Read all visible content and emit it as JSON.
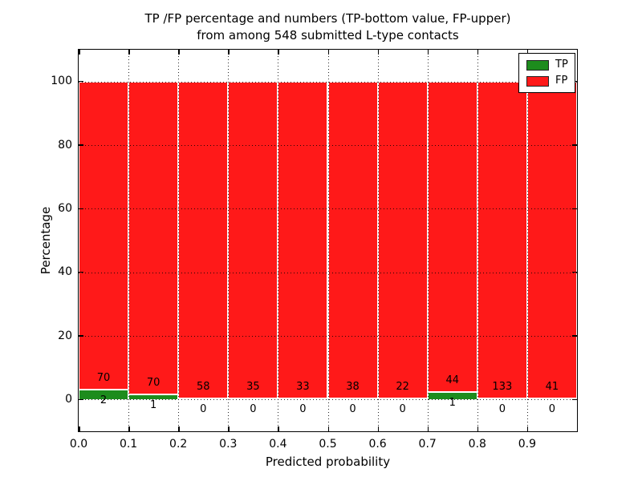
{
  "chart_data": {
    "type": "bar",
    "stacked": true,
    "representation": "each 0.1-wide bin stacked to 100% (TP bottom, FP top); printed numbers are raw counts",
    "title_line1": "TP /FP percentage and numbers (TP-bottom value, FP-upper)",
    "title_line2": "from among 548 submitted L-type contacts",
    "total_submitted": 548,
    "xlabel": "Predicted probability",
    "ylabel": "Percentage",
    "xlim": [
      0.0,
      1.0
    ],
    "ylim": [
      -10,
      110
    ],
    "x_tick_labels": [
      "0.0",
      "0.1",
      "0.2",
      "0.3",
      "0.4",
      "0.5",
      "0.6",
      "0.7",
      "0.8",
      "0.9"
    ],
    "y_tick_labels": [
      "0",
      "20",
      "40",
      "60",
      "80",
      "100"
    ],
    "y_tick_values": [
      0,
      20,
      40,
      60,
      80,
      100
    ],
    "grid": "dotted black, drawn above bars",
    "bin_start": [
      0.0,
      0.1,
      0.2,
      0.3,
      0.4,
      0.5,
      0.6,
      0.7,
      0.8,
      0.9
    ],
    "series": [
      {
        "name": "TP",
        "color": "#1d8c1d",
        "counts": [
          2,
          1,
          0,
          0,
          0,
          0,
          0,
          1,
          0,
          0
        ]
      },
      {
        "name": "FP",
        "color": "#ff1919",
        "counts": [
          70,
          70,
          58,
          35,
          33,
          38,
          22,
          44,
          133,
          41
        ]
      }
    ],
    "legend": {
      "position": "upper right",
      "entries": [
        {
          "label": "TP",
          "color": "#1d8c1d"
        },
        {
          "label": "FP",
          "color": "#ff1919"
        }
      ]
    },
    "colors": {
      "axis": "#000000",
      "background": "#ffffff",
      "bar_edge": "#ffffff"
    }
  }
}
